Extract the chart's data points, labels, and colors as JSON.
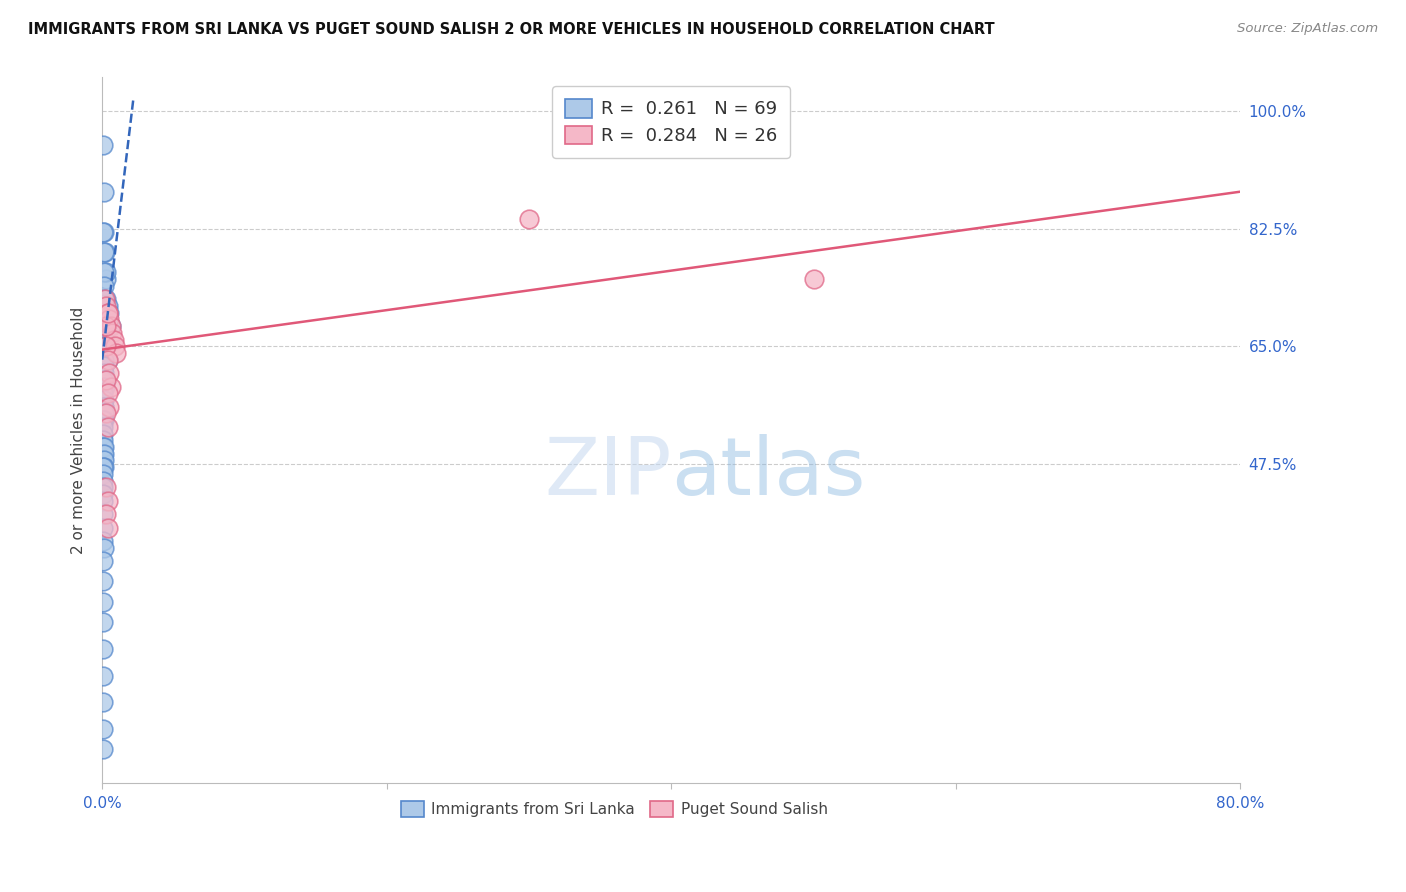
{
  "title": "IMMIGRANTS FROM SRI LANKA VS PUGET SOUND SALISH 2 OR MORE VEHICLES IN HOUSEHOLD CORRELATION CHART",
  "source": "Source: ZipAtlas.com",
  "ylabel": "2 or more Vehicles in Household",
  "ytick_labels": [
    "100.0%",
    "82.5%",
    "65.0%",
    "47.5%"
  ],
  "ytick_values": [
    1.0,
    0.825,
    0.65,
    0.475
  ],
  "legend_blue_r": "0.261",
  "legend_blue_n": "69",
  "legend_pink_r": "0.284",
  "legend_pink_n": "26",
  "legend_label_blue": "Immigrants from Sri Lanka",
  "legend_label_pink": "Puget Sound Salish",
  "blue_fill": "#adc9e8",
  "blue_edge": "#5588cc",
  "pink_fill": "#f5b8c8",
  "pink_edge": "#e06888",
  "blue_line_color": "#3366bb",
  "pink_line_color": "#e05878",
  "xlim": [
    0.0,
    0.8
  ],
  "ylim": [
    0.0,
    1.05
  ],
  "xticks": [
    0.0,
    0.2,
    0.4,
    0.6,
    0.8
  ],
  "blue_scatter_x": [
    0.0005,
    0.001,
    0.0015,
    0.002,
    0.0025,
    0.003,
    0.003,
    0.004,
    0.005,
    0.006,
    0.0005,
    0.001,
    0.001,
    0.001,
    0.0015,
    0.002,
    0.002,
    0.002,
    0.003,
    0.004,
    0.0005,
    0.0005,
    0.001,
    0.001,
    0.001,
    0.001,
    0.0015,
    0.0015,
    0.002,
    0.002,
    0.0005,
    0.0005,
    0.0005,
    0.0005,
    0.001,
    0.001,
    0.001,
    0.001,
    0.001,
    0.001,
    0.0005,
    0.0005,
    0.0005,
    0.0005,
    0.0005,
    0.0005,
    0.001,
    0.001,
    0.001,
    0.001,
    0.0005,
    0.0005,
    0.0005,
    0.0005,
    0.0005,
    0.0005,
    0.0005,
    0.0005,
    0.0005,
    0.001,
    0.0005,
    0.0005,
    0.0005,
    0.0005,
    0.0005,
    0.0005,
    0.0005,
    0.0005,
    0.0005
  ],
  "blue_scatter_y": [
    0.95,
    0.88,
    0.82,
    0.79,
    0.75,
    0.76,
    0.72,
    0.71,
    0.7,
    0.68,
    0.82,
    0.79,
    0.76,
    0.74,
    0.72,
    0.7,
    0.68,
    0.67,
    0.65,
    0.63,
    0.7,
    0.68,
    0.66,
    0.65,
    0.63,
    0.62,
    0.62,
    0.61,
    0.6,
    0.59,
    0.6,
    0.59,
    0.58,
    0.57,
    0.57,
    0.56,
    0.56,
    0.55,
    0.55,
    0.54,
    0.54,
    0.53,
    0.52,
    0.51,
    0.5,
    0.49,
    0.5,
    0.49,
    0.48,
    0.47,
    0.47,
    0.46,
    0.45,
    0.44,
    0.43,
    0.42,
    0.4,
    0.38,
    0.36,
    0.35,
    0.33,
    0.3,
    0.27,
    0.24,
    0.2,
    0.16,
    0.12,
    0.08,
    0.05
  ],
  "pink_scatter_x": [
    0.002,
    0.003,
    0.004,
    0.005,
    0.006,
    0.007,
    0.008,
    0.009,
    0.01,
    0.003,
    0.004,
    0.005,
    0.006,
    0.003,
    0.004,
    0.005,
    0.003,
    0.004,
    0.003,
    0.004,
    0.003,
    0.004,
    0.003,
    0.004,
    0.3,
    0.5
  ],
  "pink_scatter_y": [
    0.72,
    0.71,
    0.7,
    0.69,
    0.68,
    0.67,
    0.66,
    0.65,
    0.64,
    0.65,
    0.63,
    0.61,
    0.59,
    0.6,
    0.58,
    0.56,
    0.55,
    0.53,
    0.68,
    0.7,
    0.44,
    0.42,
    0.4,
    0.38,
    0.84,
    0.75
  ],
  "blue_trend_x0": 0.0,
  "blue_trend_x1": 0.022,
  "blue_trend_y0": 0.63,
  "blue_trend_y1": 1.02,
  "blue_trend_ext_x0": 0.0,
  "blue_trend_ext_x1": 0.022,
  "pink_trend_x0": 0.0,
  "pink_trend_x1": 0.8,
  "pink_trend_y0": 0.645,
  "pink_trend_y1": 0.88
}
